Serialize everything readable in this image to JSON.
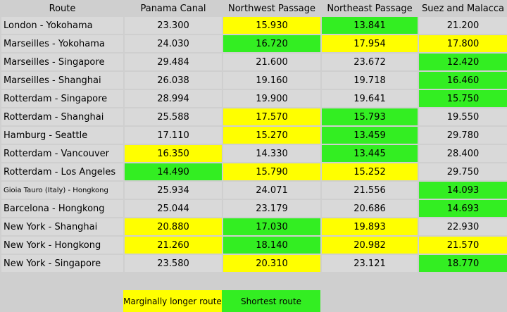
{
  "header": {
    "route": "Route",
    "panama": "Panama Canal",
    "northwest": "Northwest Passage",
    "northeast": "Northeast Passage",
    "suez": "Suez and Malacca"
  },
  "colors": {
    "yellow": "#ffff00",
    "green": "#33ee22",
    "none": "#d9d9d9"
  },
  "rows": [
    {
      "route": "London - Yokohama",
      "panama": "23.300",
      "northwest": "15.930",
      "northeast": "13.841",
      "suez": "21.200",
      "hl": [
        "none",
        "yellow",
        "green",
        "none"
      ]
    },
    {
      "route": "Marseilles - Yokohama",
      "panama": "24.030",
      "northwest": "16.720",
      "northeast": "17.954",
      "suez": "17.800",
      "hl": [
        "none",
        "green",
        "yellow",
        "yellow"
      ]
    },
    {
      "route": "Marseilles - Singapore",
      "panama": "29.484",
      "northwest": "21.600",
      "northeast": "23.672",
      "suez": "12.420",
      "hl": [
        "none",
        "none",
        "none",
        "green"
      ]
    },
    {
      "route": "Marseilles - Shanghai",
      "panama": "26.038",
      "northwest": "19.160",
      "northeast": "19.718",
      "suez": "16.460",
      "hl": [
        "none",
        "none",
        "none",
        "green"
      ]
    },
    {
      "route": "Rotterdam - Singapore",
      "panama": "28.994",
      "northwest": "19.900",
      "northeast": "19.641",
      "suez": "15.750",
      "hl": [
        "none",
        "none",
        "none",
        "green"
      ]
    },
    {
      "route": "Rotterdam - Shanghai",
      "panama": "25.588",
      "northwest": "17.570",
      "northeast": "15.793",
      "suez": "19.550",
      "hl": [
        "none",
        "yellow",
        "green",
        "none"
      ]
    },
    {
      "route": "Hamburg - Seattle",
      "panama": "17.110",
      "northwest": "15.270",
      "northeast": "13.459",
      "suez": "29.780",
      "hl": [
        "none",
        "yellow",
        "green",
        "none"
      ]
    },
    {
      "route": "Rotterdam - Vancouver",
      "panama": "16.350",
      "northwest": "14.330",
      "northeast": "13.445",
      "suez": "28.400",
      "hl": [
        "yellow",
        "none",
        "green",
        "none"
      ]
    },
    {
      "route": "Rotterdam - Los Angeles",
      "panama": "14.490",
      "northwest": "15.790",
      "northeast": "15.252",
      "suez": "29.750",
      "hl": [
        "green",
        "yellow",
        "yellow",
        "none"
      ]
    },
    {
      "route": "Gioia Tauro (Italy) - Hongkong",
      "panama": "25.934",
      "northwest": "24.071",
      "northeast": "21.556",
      "suez": "14.093",
      "hl": [
        "none",
        "none",
        "none",
        "green"
      ],
      "small": true
    },
    {
      "route": "Barcelona - Hongkong",
      "panama": "25.044",
      "northwest": "23.179",
      "northeast": "20.686",
      "suez": "14.693",
      "hl": [
        "none",
        "none",
        "none",
        "green"
      ]
    },
    {
      "route": "New York - Shanghai",
      "panama": "20.880",
      "northwest": "17.030",
      "northeast": "19.893",
      "suez": "22.930",
      "hl": [
        "yellow",
        "green",
        "yellow",
        "none"
      ]
    },
    {
      "route": "New York - Hongkong",
      "panama": "21.260",
      "northwest": "18.140",
      "northeast": "20.982",
      "suez": "21.570",
      "hl": [
        "yellow",
        "green",
        "yellow",
        "yellow"
      ]
    },
    {
      "route": "New York - Singapore",
      "panama": "23.580",
      "northwest": "20.310",
      "northeast": "23.121",
      "suez": "18.770",
      "hl": [
        "none",
        "yellow",
        "none",
        "green"
      ]
    }
  ],
  "legend": {
    "yellow_label": "Marginally longer route",
    "green_label": "Shortest route"
  }
}
